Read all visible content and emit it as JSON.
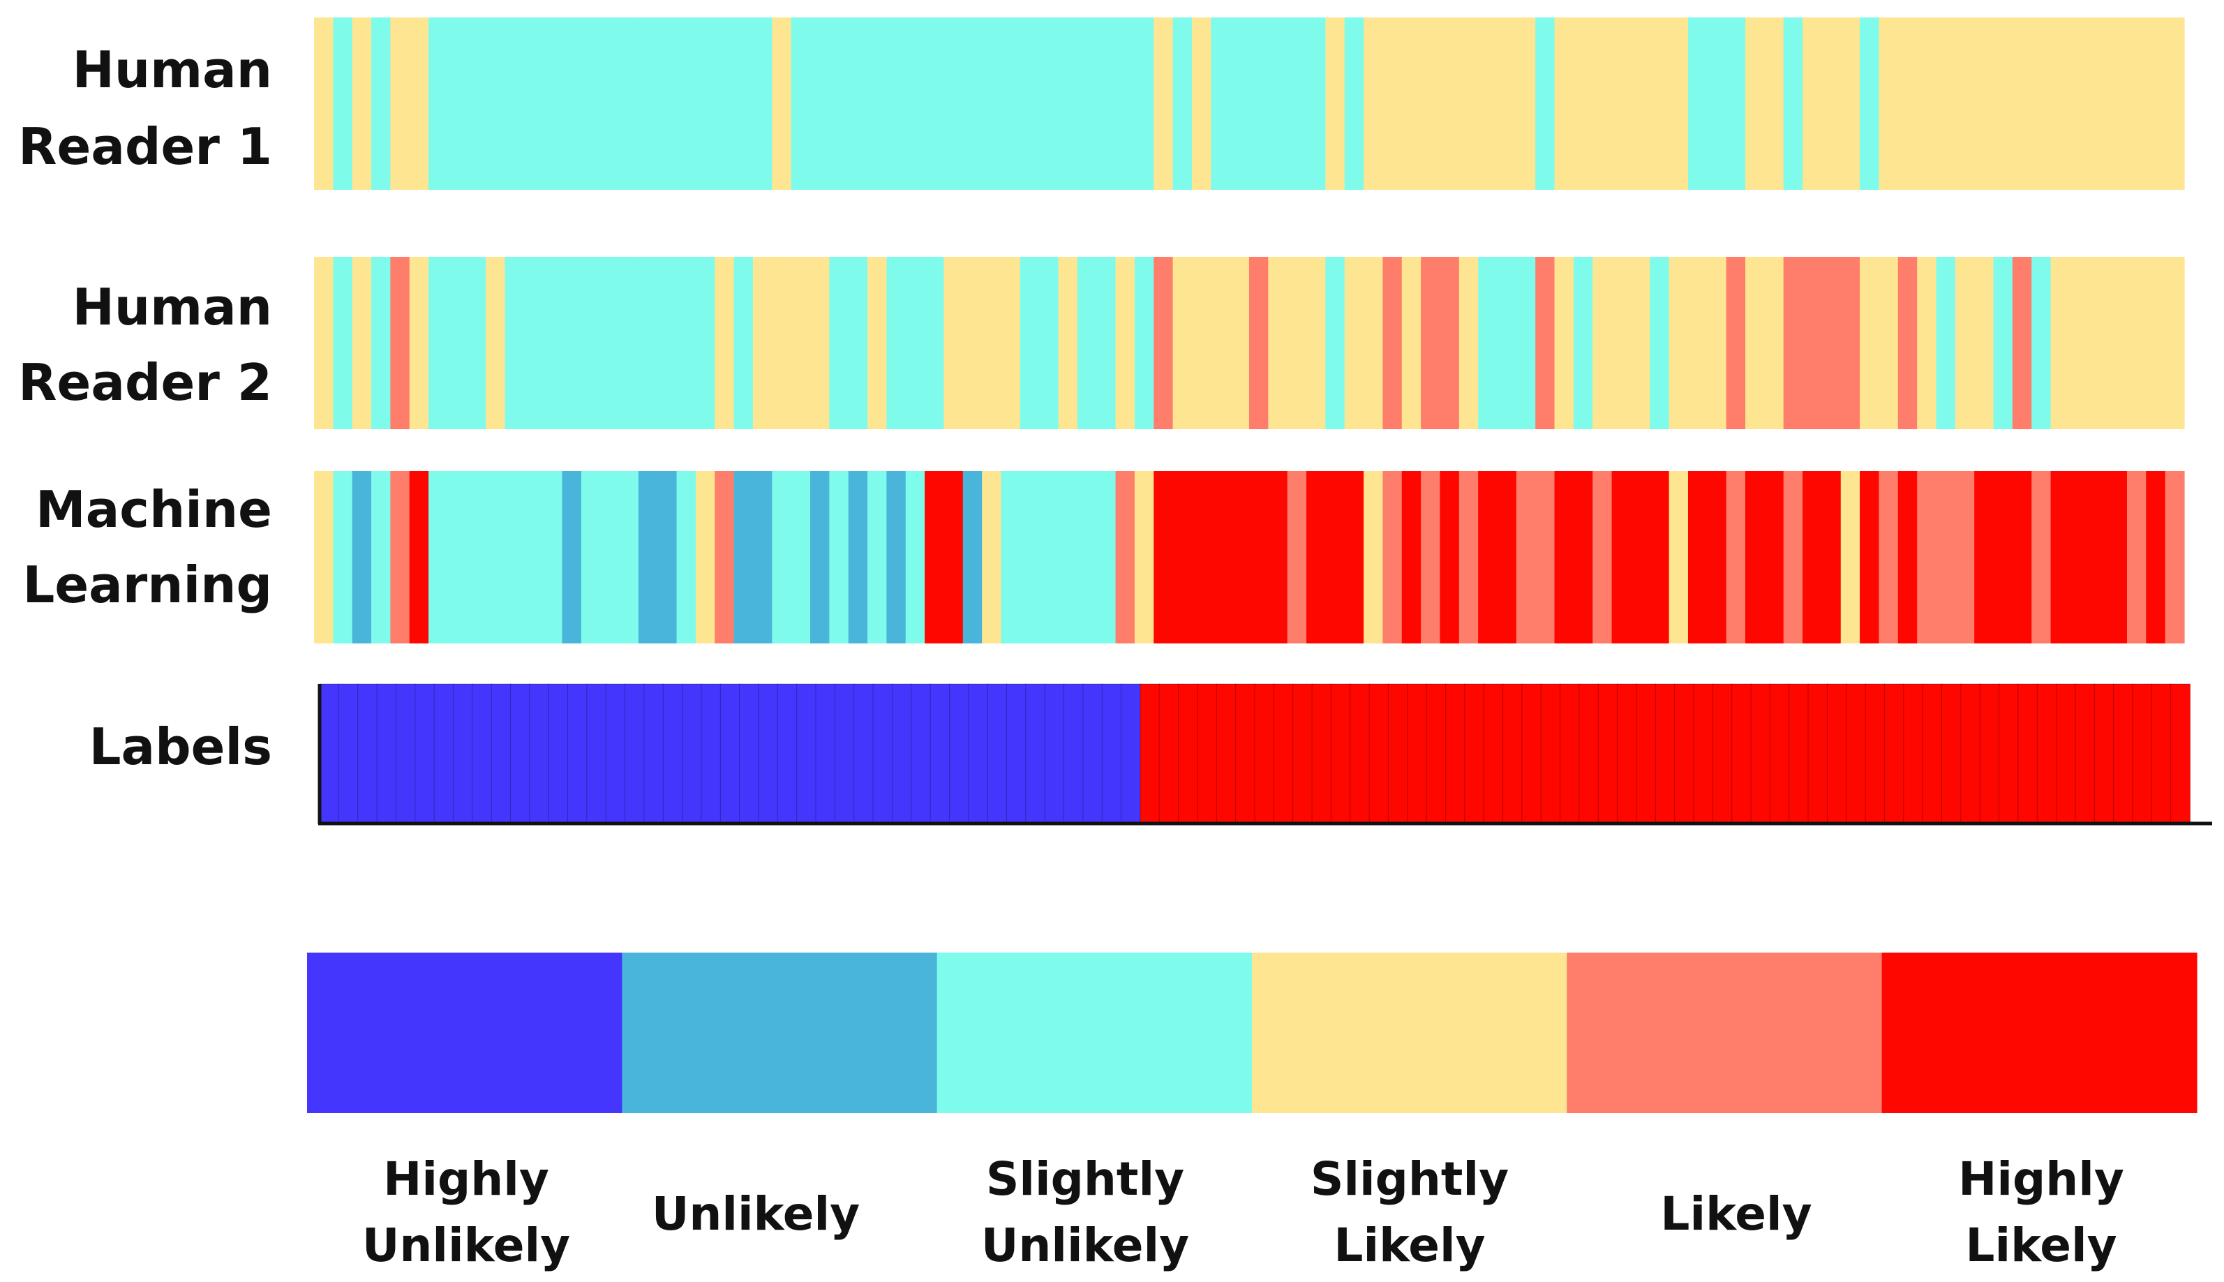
{
  "chart_data": {
    "type": "heatmap",
    "title": "",
    "n_cases": 98,
    "scale": [
      {
        "code": 0,
        "label": "Highly Unlikely",
        "color": "#4536FE"
      },
      {
        "code": 1,
        "label": "Unlikely",
        "color": "#4AB5DA"
      },
      {
        "code": 2,
        "label": "Slightly Unlikely",
        "color": "#7FFBEB"
      },
      {
        "code": 3,
        "label": "Slightly Likely",
        "color": "#FDE591"
      },
      {
        "code": 4,
        "label": "Likely",
        "color": "#FE7D6B"
      },
      {
        "code": 5,
        "label": "Highly Likely",
        "color": "#FE0700"
      }
    ],
    "rows": [
      {
        "label": "Human Reader 1",
        "values": [
          3,
          2,
          3,
          2,
          3,
          3,
          2,
          2,
          2,
          2,
          2,
          2,
          2,
          2,
          2,
          2,
          2,
          2,
          2,
          2,
          2,
          2,
          2,
          2,
          3,
          2,
          2,
          2,
          2,
          2,
          2,
          2,
          2,
          2,
          2,
          2,
          2,
          2,
          2,
          2,
          2,
          2,
          2,
          2,
          3,
          2,
          3,
          2,
          2,
          2,
          2,
          2,
          2,
          3,
          2,
          3,
          3,
          3,
          3,
          3,
          3,
          3,
          3,
          3,
          2,
          3,
          3,
          3,
          3,
          3,
          3,
          3,
          2,
          2,
          2,
          3,
          3,
          2,
          3,
          3,
          3,
          2,
          3,
          3,
          3,
          3,
          3,
          3,
          3,
          3,
          3,
          3,
          3,
          3,
          3,
          3,
          3,
          3
        ]
      },
      {
        "label": "Human Reader 2",
        "values": [
          3,
          2,
          3,
          2,
          4,
          3,
          2,
          2,
          2,
          3,
          2,
          2,
          2,
          2,
          2,
          2,
          2,
          2,
          2,
          2,
          2,
          3,
          2,
          3,
          3,
          3,
          3,
          2,
          2,
          3,
          2,
          2,
          2,
          3,
          3,
          3,
          3,
          2,
          2,
          3,
          2,
          2,
          3,
          2,
          4,
          3,
          3,
          3,
          3,
          4,
          3,
          3,
          3,
          2,
          3,
          3,
          4,
          3,
          4,
          4,
          3,
          2,
          2,
          2,
          4,
          3,
          2,
          3,
          3,
          3,
          2,
          3,
          3,
          3,
          4,
          3,
          3,
          4,
          4,
          4,
          4,
          3,
          3,
          4,
          3,
          2,
          3,
          3,
          2,
          4,
          2,
          3,
          3,
          3,
          3,
          3,
          3,
          3
        ]
      },
      {
        "label": "Machine Learning",
        "values": [
          3,
          2,
          1,
          2,
          4,
          5,
          2,
          2,
          2,
          2,
          2,
          2,
          2,
          1,
          2,
          2,
          2,
          1,
          1,
          2,
          3,
          4,
          1,
          1,
          2,
          2,
          1,
          2,
          1,
          2,
          1,
          2,
          5,
          5,
          1,
          3,
          2,
          2,
          2,
          2,
          2,
          2,
          4,
          3,
          5,
          5,
          5,
          5,
          5,
          5,
          5,
          4,
          5,
          5,
          5,
          3,
          4,
          5,
          4,
          5,
          4,
          5,
          5,
          4,
          4,
          5,
          5,
          4,
          5,
          5,
          5,
          3,
          5,
          5,
          4,
          5,
          5,
          4,
          5,
          5,
          3,
          5,
          4,
          5,
          4,
          4,
          4,
          5,
          5,
          5,
          4,
          5,
          5,
          5,
          5,
          4,
          5,
          4
        ]
      },
      {
        "label": "Labels",
        "values": [
          0,
          0,
          0,
          0,
          0,
          0,
          0,
          0,
          0,
          0,
          0,
          0,
          0,
          0,
          0,
          0,
          0,
          0,
          0,
          0,
          0,
          0,
          0,
          0,
          0,
          0,
          0,
          0,
          0,
          0,
          0,
          0,
          0,
          0,
          0,
          0,
          0,
          0,
          0,
          0,
          0,
          0,
          0,
          5,
          5,
          5,
          5,
          5,
          5,
          5,
          5,
          5,
          5,
          5,
          5,
          5,
          5,
          5,
          5,
          5,
          5,
          5,
          5,
          5,
          5,
          5,
          5,
          5,
          5,
          5,
          5,
          5,
          5,
          5,
          5,
          5,
          5,
          5,
          5,
          5,
          5,
          5,
          5,
          5,
          5,
          5,
          5,
          5,
          5,
          5,
          5,
          5,
          5,
          5,
          5,
          5,
          5,
          5
        ]
      }
    ],
    "row_label_lines": [
      [
        "Human",
        "Reader 1"
      ],
      [
        "Human",
        "Reader 2"
      ],
      [
        "Machine",
        "Learning"
      ],
      [
        "Labels"
      ]
    ],
    "legend_label_lines": [
      [
        "Highly",
        "Unlikely"
      ],
      [
        "Unlikely"
      ],
      [
        "Slightly",
        "Unlikely"
      ],
      [
        "Slightly",
        "Likely"
      ],
      [
        "Likely"
      ],
      [
        "Highly",
        "Likely"
      ]
    ]
  }
}
